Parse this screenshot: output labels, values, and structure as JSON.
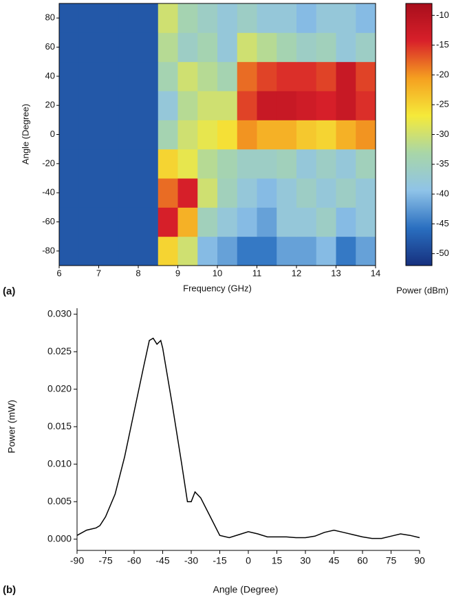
{
  "chart_data": [
    {
      "type": "heatmap",
      "panel_label": "(a)",
      "xlabel": "Frequency (GHz)",
      "ylabel": "Angle  (Degree)",
      "x": [
        6.25,
        6.75,
        7.25,
        7.75,
        8.25,
        8.75,
        9.25,
        9.75,
        10.25,
        10.75,
        11.25,
        11.75,
        12.25,
        12.75,
        13.25,
        13.75
      ],
      "y": [
        -80,
        -60,
        -40,
        -20,
        0,
        20,
        40,
        60,
        80
      ],
      "values": [
        [
          -48,
          -48,
          -48,
          -48,
          -48,
          -25,
          -30,
          -40,
          -42,
          -45,
          -45,
          -42,
          -42,
          -40,
          -45,
          -42
        ],
        [
          -48,
          -48,
          -48,
          -48,
          -48,
          -14,
          -22,
          -35,
          -38,
          -40,
          -42,
          -38,
          -38,
          -36,
          -40,
          -38
        ],
        [
          -48,
          -48,
          -48,
          -48,
          -48,
          -18,
          -14,
          -30,
          -35,
          -38,
          -40,
          -38,
          -36,
          -38,
          -36,
          -38
        ],
        [
          -48,
          -48,
          -48,
          -48,
          -48,
          -25,
          -28,
          -32,
          -34,
          -36,
          -36,
          -35,
          -38,
          -36,
          -38,
          -35
        ],
        [
          -48,
          -48,
          -48,
          -48,
          -48,
          -34,
          -30,
          -28,
          -26,
          -20,
          -22,
          -22,
          -24,
          -25,
          -22,
          -20
        ],
        [
          -48,
          -48,
          -48,
          -48,
          -48,
          -38,
          -32,
          -30,
          -30,
          -16,
          -12,
          -12,
          -13,
          -14,
          -12,
          -15
        ],
        [
          -48,
          -48,
          -48,
          -48,
          -48,
          -34,
          -30,
          -32,
          -34,
          -18,
          -16,
          -15,
          -15,
          -16,
          -12,
          -16
        ],
        [
          -48,
          -48,
          -48,
          -48,
          -48,
          -32,
          -36,
          -34,
          -38,
          -30,
          -32,
          -34,
          -36,
          -35,
          -38,
          -36
        ],
        [
          -48,
          -48,
          -48,
          -48,
          -48,
          -30,
          -34,
          -36,
          -38,
          -36,
          -38,
          -38,
          -40,
          -38,
          -38,
          -40
        ]
      ],
      "xlim": [
        6,
        14
      ],
      "xticks": [
        6,
        7,
        8,
        9,
        10,
        11,
        12,
        13,
        14
      ],
      "ylim": [
        -90,
        90
      ],
      "yticks": [
        -80,
        -60,
        -40,
        -20,
        0,
        20,
        40,
        60,
        80
      ],
      "zlim": [
        -52,
        -8
      ],
      "zticks": [
        -50,
        -45,
        -40,
        -35,
        -30,
        -25,
        -20,
        -15,
        -10
      ],
      "zlabel": "Power (dBm)",
      "colorscale": [
        "#16307e",
        "#2a6fc0",
        "#8fc3e8",
        "#a8d6a8",
        "#f5ea3a",
        "#f5a020",
        "#d8202a",
        "#a80e1c"
      ]
    },
    {
      "type": "line",
      "panel_label": "(b)",
      "xlabel": "Angle (Degree)",
      "ylabel": "Power (mW)",
      "color": "#000000",
      "x": [
        -90,
        -85,
        -80,
        -78,
        -75,
        -70,
        -65,
        -60,
        -55,
        -52,
        -50,
        -48,
        -46,
        -45,
        -40,
        -35,
        -32,
        -30,
        -28,
        -25,
        -20,
        -15,
        -10,
        -5,
        0,
        5,
        10,
        15,
        20,
        25,
        30,
        35,
        40,
        45,
        50,
        55,
        60,
        65,
        70,
        75,
        80,
        85,
        90
      ],
      "values": [
        0.0005,
        0.0012,
        0.0015,
        0.0018,
        0.003,
        0.006,
        0.011,
        0.017,
        0.023,
        0.0265,
        0.0268,
        0.026,
        0.0265,
        0.0255,
        0.018,
        0.01,
        0.005,
        0.005,
        0.0063,
        0.0055,
        0.003,
        0.0005,
        0.0002,
        0.0006,
        0.001,
        0.0007,
        0.0003,
        0.0003,
        0.0003,
        0.0002,
        0.0002,
        0.0004,
        0.0009,
        0.0012,
        0.0009,
        0.0006,
        0.0003,
        0.0001,
        0.0001,
        0.0004,
        0.0007,
        0.0005,
        0.0002
      ],
      "xlim": [
        -90,
        90
      ],
      "xticks": [
        -90,
        -75,
        -60,
        -45,
        -30,
        -15,
        0,
        15,
        30,
        45,
        60,
        75,
        90
      ],
      "ylim": [
        -0.0015,
        0.0308
      ],
      "yticks": [
        {
          "value": 0,
          "label": "0.000"
        },
        {
          "value": 0.005,
          "label": "0.005"
        },
        {
          "value": 0.01,
          "label": "0.010"
        },
        {
          "value": 0.015,
          "label": "0.015"
        },
        {
          "value": 0.02,
          "label": "0.020"
        },
        {
          "value": 0.025,
          "label": "0.025"
        },
        {
          "value": 0.03,
          "label": "0.030"
        }
      ]
    }
  ]
}
